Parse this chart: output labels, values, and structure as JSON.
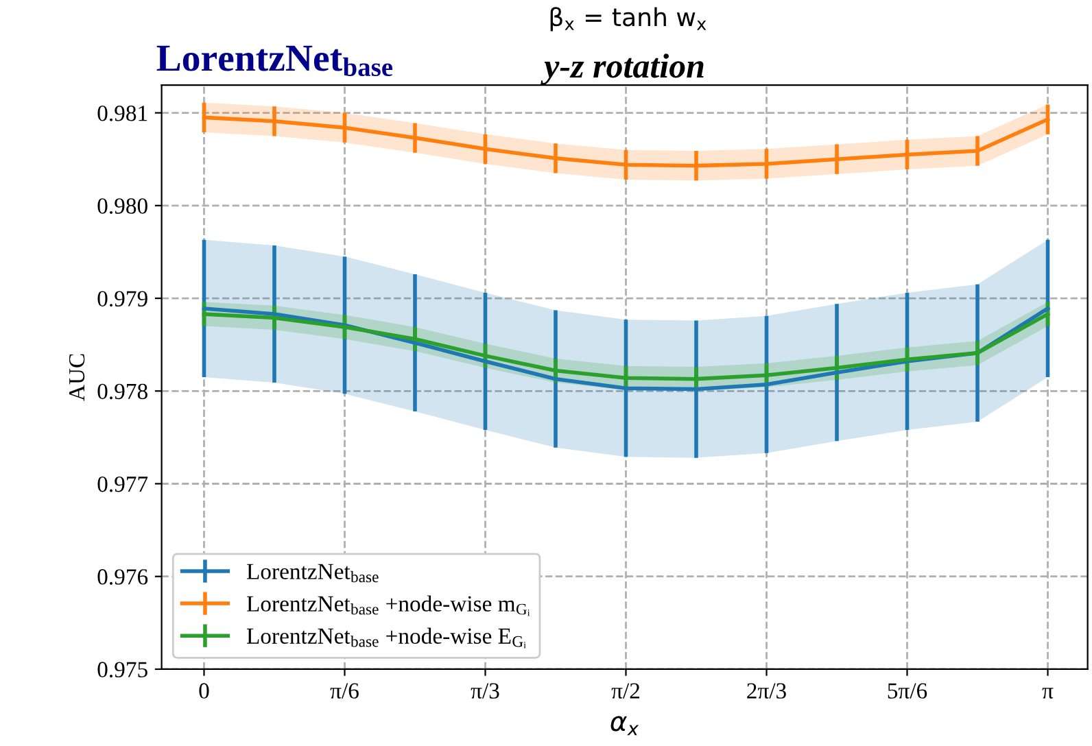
{
  "chart_data": {
    "type": "line",
    "title": "y-z rotation",
    "xlabel": "α$_{x}$",
    "ylabel": "AUC",
    "annotations": [
      "LorentzNet$_{base}$",
      "β$_{x}$ = tanh w$_{x}$"
    ],
    "x": [
      0,
      0.2618,
      0.5236,
      0.7854,
      1.0472,
      1.309,
      1.5708,
      1.8326,
      2.0944,
      2.3562,
      2.618,
      2.8798,
      3.1416
    ],
    "series": [
      {
        "name": "LorentzNet$_{base}$",
        "color": "#1f77b4",
        "values": [
          0.97889,
          0.97883,
          0.97871,
          0.97852,
          0.97832,
          0.97813,
          0.97803,
          0.97802,
          0.97807,
          0.9782,
          0.97832,
          0.97841,
          0.97889
        ],
        "errors": [
          0.00074,
          0.00074,
          0.00074,
          0.00074,
          0.00074,
          0.00074,
          0.00074,
          0.00074,
          0.00074,
          0.00074,
          0.00074,
          0.00074,
          0.00074
        ],
        "lower": [
          0.97815,
          0.97809,
          0.97797,
          0.97778,
          0.97758,
          0.97739,
          0.97729,
          0.97728,
          0.97733,
          0.97746,
          0.97758,
          0.97767,
          0.97815
        ],
        "upper": [
          0.97963,
          0.97957,
          0.97945,
          0.97926,
          0.97906,
          0.97887,
          0.97877,
          0.97876,
          0.97881,
          0.97894,
          0.97906,
          0.97915,
          0.97963
        ]
      },
      {
        "name": "LorentzNet$_{base}$ +node-wise m$_{Gᵢ}$",
        "color": "#ff7f0e",
        "values": [
          0.98095,
          0.98091,
          0.98084,
          0.98073,
          0.98061,
          0.98051,
          0.98044,
          0.98043,
          0.98045,
          0.9805,
          0.98055,
          0.98059,
          0.98093
        ],
        "errors": [
          0.00016,
          0.00016,
          0.00016,
          0.00016,
          0.00016,
          0.00016,
          0.00016,
          0.00016,
          0.00016,
          0.00016,
          0.00016,
          0.00016,
          0.00016
        ],
        "lower": [
          0.98079,
          0.98075,
          0.98068,
          0.98057,
          0.98045,
          0.98035,
          0.98028,
          0.98027,
          0.98029,
          0.98034,
          0.98039,
          0.98043,
          0.98077
        ],
        "upper": [
          0.98111,
          0.98107,
          0.981,
          0.98089,
          0.98077,
          0.98067,
          0.9806,
          0.98059,
          0.98061,
          0.98066,
          0.98071,
          0.98075,
          0.98109
        ]
      },
      {
        "name": "LorentzNet$_{base}$ +node-wise E$_{Gᵢ}$",
        "color": "#2ca02c",
        "values": [
          0.97883,
          0.97879,
          0.97869,
          0.97856,
          0.97838,
          0.97822,
          0.97814,
          0.97813,
          0.97817,
          0.97825,
          0.97834,
          0.97841,
          0.97883
        ],
        "errors": [
          0.00013,
          0.00013,
          0.00013,
          0.00013,
          0.00013,
          0.00013,
          0.00013,
          0.00013,
          0.00013,
          0.00013,
          0.00013,
          0.00013,
          0.00013
        ],
        "lower": [
          0.9787,
          0.97866,
          0.97856,
          0.97843,
          0.97825,
          0.97809,
          0.97801,
          0.978,
          0.97804,
          0.97812,
          0.97821,
          0.97828,
          0.9787
        ],
        "upper": [
          0.97896,
          0.97892,
          0.97882,
          0.97869,
          0.97851,
          0.97835,
          0.97827,
          0.97826,
          0.9783,
          0.97838,
          0.97847,
          0.97854,
          0.97896
        ]
      }
    ],
    "xlim": [
      -0.158,
      3.29
    ],
    "ylim": [
      0.975,
      0.9813
    ],
    "xticks": [
      {
        "value": 0,
        "label": "0"
      },
      {
        "value": 0.5236,
        "label": "π/6"
      },
      {
        "value": 1.0472,
        "label": "π/3"
      },
      {
        "value": 1.5708,
        "label": "π/2"
      },
      {
        "value": 2.0944,
        "label": "2π/3"
      },
      {
        "value": 2.618,
        "label": "5π/6"
      },
      {
        "value": 3.1416,
        "label": "π"
      }
    ],
    "yticks": [
      {
        "value": 0.975,
        "label": "0.975"
      },
      {
        "value": 0.976,
        "label": "0.976"
      },
      {
        "value": 0.977,
        "label": "0.977"
      },
      {
        "value": 0.978,
        "label": "0.978"
      },
      {
        "value": 0.979,
        "label": "0.979"
      },
      {
        "value": 0.98,
        "label": "0.980"
      },
      {
        "value": 0.981,
        "label": "0.981"
      }
    ],
    "grid": true,
    "legend": "bottom left",
    "marker": "none",
    "line_style": "solid"
  }
}
